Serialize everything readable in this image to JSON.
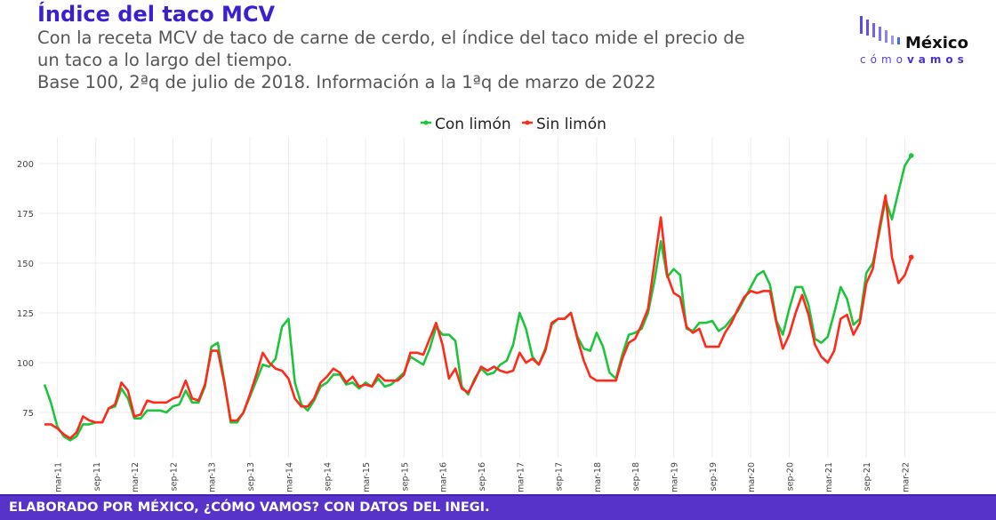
{
  "header": {
    "title": "Índice del taco MCV",
    "subtitle_line1": "Con la receta MCV de taco de carne de cerdo, el índice del taco mide el precio de",
    "subtitle_line2": "un taco a lo largo del tiempo.",
    "subtitle_line3": "Base 100, 2ªq de julio de 2018. Información a la 1ªq de marzo de 2022"
  },
  "logo": {
    "text_main": "México",
    "text_sub1": "cómo",
    "text_sub2": "vamos"
  },
  "footer": {
    "text": "ELABORADO POR MÉXICO, ¿CÓMO VAMOS? CON DATOS DEL INEGI."
  },
  "colors": {
    "con_limon": "#1ec43c",
    "sin_limon": "#ff2a1a",
    "title": "#3d1fd0",
    "footer": "#5733c9"
  },
  "chart_data": {
    "type": "line",
    "title": "Índice del taco MCV",
    "xlabel": "",
    "ylabel": "",
    "ylim": [
      60,
      210
    ],
    "yticks": [
      75,
      100,
      125,
      150,
      175,
      200
    ],
    "xticks": [
      "mar-11",
      "sep-11",
      "mar-12",
      "sep-12",
      "mar-13",
      "sep-13",
      "mar-14",
      "sep-14",
      "mar-15",
      "sep-15",
      "mar-16",
      "sep-16",
      "mar-17",
      "sep-17",
      "mar-18",
      "sep-18",
      "mar-19",
      "sep-19",
      "mar-20",
      "sep-20",
      "mar-21",
      "sep-21",
      "mar-22"
    ],
    "legend": {
      "position": "top-center",
      "entries": [
        "Con limón",
        "Sin limón"
      ]
    },
    "grid": true,
    "x_note": "monthly-ish observations from early 2011 to 1ªq mar-2022",
    "series": [
      {
        "name": "Con limón",
        "color": "#1ec43c",
        "values": [
          89,
          80,
          68,
          63,
          61,
          63,
          69,
          69,
          70,
          70,
          77,
          78,
          87,
          82,
          72,
          72,
          76,
          76,
          76,
          75,
          78,
          79,
          86,
          80,
          80,
          88,
          108,
          110,
          91,
          70,
          70,
          75,
          83,
          91,
          99,
          98,
          102,
          118,
          122,
          90,
          79,
          76,
          81,
          88,
          90,
          94,
          94,
          89,
          90,
          87,
          90,
          88,
          92,
          88,
          89,
          92,
          95,
          103,
          101,
          99,
          107,
          118,
          114,
          114,
          111,
          88,
          84,
          92,
          97,
          94,
          95,
          99,
          101,
          109,
          125,
          117,
          103,
          99,
          107,
          119,
          122,
          122,
          125,
          113,
          107,
          106,
          115,
          108,
          95,
          92,
          104,
          114,
          115,
          117,
          125,
          141,
          161,
          143,
          147,
          144,
          117,
          116,
          120,
          120,
          121,
          116,
          118,
          122,
          126,
          132,
          138,
          144,
          146,
          139,
          121,
          114,
          127,
          138,
          138,
          129,
          112,
          110,
          113,
          125,
          138,
          132,
          119,
          122,
          145,
          150,
          165,
          182,
          172,
          186,
          199,
          204
        ]
      },
      {
        "name": "Sin limón",
        "color": "#ff2a1a",
        "values": [
          69,
          69,
          67,
          64,
          62,
          65,
          73,
          71,
          70,
          70,
          77,
          79,
          90,
          86,
          73,
          74,
          81,
          80,
          80,
          80,
          82,
          83,
          91,
          82,
          81,
          89,
          106,
          106,
          90,
          71,
          71,
          75,
          84,
          94,
          105,
          100,
          97,
          96,
          92,
          82,
          78,
          78,
          82,
          90,
          93,
          97,
          95,
          90,
          93,
          88,
          89,
          88,
          94,
          91,
          91,
          91,
          94,
          105,
          105,
          104,
          112,
          120,
          109,
          92,
          97,
          87,
          85,
          91,
          98,
          96,
          98,
          96,
          95,
          96,
          105,
          100,
          102,
          99,
          106,
          120,
          122,
          122,
          125,
          112,
          101,
          93,
          91,
          91,
          91,
          91,
          102,
          110,
          112,
          119,
          127,
          150,
          173,
          144,
          135,
          133,
          118,
          115,
          117,
          108,
          108,
          108,
          115,
          120,
          127,
          133,
          136,
          135,
          136,
          136,
          120,
          107,
          114,
          125,
          134,
          124,
          109,
          103,
          100,
          106,
          122,
          124,
          114,
          120,
          140,
          147,
          167,
          184,
          153,
          140,
          144,
          153
        ]
      }
    ]
  }
}
